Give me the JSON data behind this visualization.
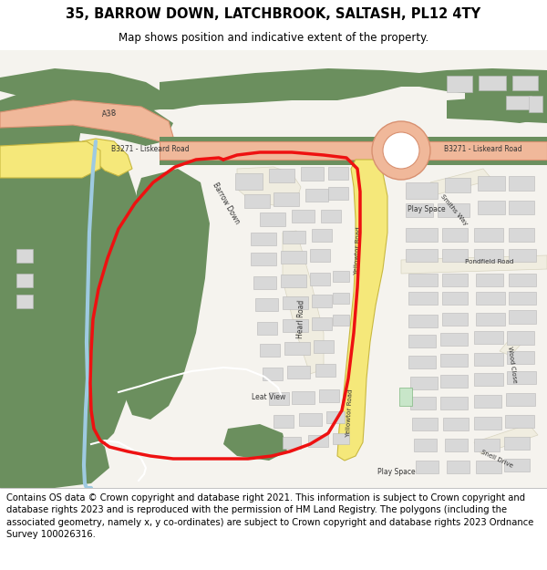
{
  "title": "35, BARROW DOWN, LATCHBROOK, SALTASH, PL12 4TY",
  "subtitle": "Map shows position and indicative extent of the property.",
  "footer": "Contains OS data © Crown copyright and database right 2021. This information is subject to Crown copyright and database rights 2023 and is reproduced with the permission of HM Land Registry. The polygons (including the associated geometry, namely x, y co-ordinates) are subject to Crown copyright and database rights 2023 Ordnance Survey 100026316.",
  "bg_color": "#ffffff",
  "map_bg": "#f2f0eb",
  "green_color": "#6b8f5e",
  "road_salmon": "#f0b89a",
  "road_salmon_border": "#d89070",
  "yellow_road": "#f5e87a",
  "yellow_road_border": "#c8b840",
  "building_color": "#d8d8d8",
  "building_border": "#b8b8b8",
  "blue_river": "#9ecae1",
  "red_boundary": "#ee1111",
  "play_space_color": "#c8e6c9",
  "title_fontsize": 10.5,
  "subtitle_fontsize": 8.5,
  "footer_fontsize": 7.2
}
